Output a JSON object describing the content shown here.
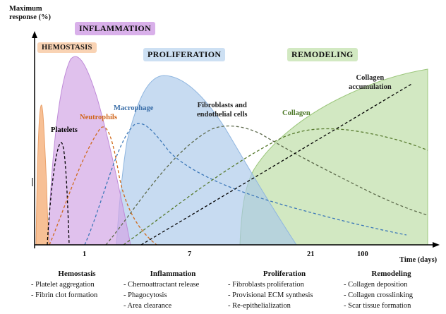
{
  "axis": {
    "y_label_line1": "Maximum",
    "y_label_line2": "response (%)",
    "x_label": "Time (days)",
    "ticks": [
      "1",
      "7",
      "21",
      "100"
    ]
  },
  "phases": {
    "hemostasis": "HEMOSTASIS",
    "inflammation": "INFLAMMATION",
    "proliferation": "PROLIFERATION",
    "remodeling": "REMODELING"
  },
  "curves": {
    "platelets": "Platelets",
    "neutrophils": "Neutrophils",
    "macrophage": "Macrophage",
    "fibroblasts_line1": "Fibroblasts and",
    "fibroblasts_line2": "endothelial cells",
    "collagen": "Collagen",
    "collagen_accum_line1": "Collagen",
    "collagen_accum_line2": "accumulation"
  },
  "columns": [
    {
      "title": "Hemostasis",
      "items": [
        "- Platelet aggregation",
        "- Fibrin clot formation"
      ]
    },
    {
      "title": "Inflammation",
      "items": [
        "- Chemoattractant release",
        "- Phagocytosis",
        "- Area clearance"
      ]
    },
    {
      "title": "Proliferation",
      "items": [
        "- Fibroblasts proliferation",
        "- Provisional ECM synthesis",
        "- Re-epithelialization"
      ]
    },
    {
      "title": "Remodeling",
      "items": [
        "- Collagen deposition",
        "- Collagen crosslinking",
        "- Scar tissue formation"
      ]
    }
  ],
  "colors": {
    "hemostasis": "#f6b98a",
    "inflammation": "#d3a6e6",
    "proliferation": "#a9c8ea",
    "remodeling": "#b4d89a",
    "platelets": "#000000",
    "neutrophils": "#cf6a1c",
    "macrophage": "#3d78b8",
    "fibro": "#5d6a4c",
    "collagen": "#577a2e",
    "accum": "#000000",
    "macrophage_label": "#3a6ea8",
    "neutrophil_label": "#d0651b",
    "collagen_label": "#4f7a2a"
  }
}
